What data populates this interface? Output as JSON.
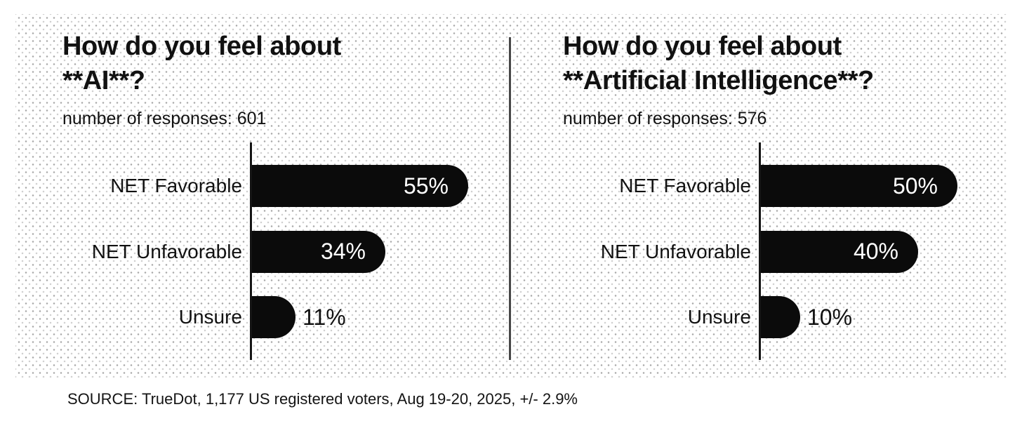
{
  "page": {
    "footer_source": "SOURCE: TrueDot, 1,177 US registered voters, Aug 19-20, 2025, +/- 2.9%",
    "colors": {
      "background": "#ffffff",
      "bar": "#0b0b0b",
      "text": "#111111",
      "bar_label_inside": "#ffffff",
      "divider": "#484848",
      "dot_texture": "#a9a9a9"
    }
  },
  "chart_data": [
    {
      "type": "bar",
      "orientation": "horizontal",
      "title": "How do you feel about **AI**?",
      "title_lines": [
        "How do you feel about",
        "**AI**?"
      ],
      "subtitle": "number of responses: 601",
      "responses": 601,
      "categories": [
        "NET Favorable",
        "NET Unfavorable",
        "Unsure"
      ],
      "values": [
        55,
        34,
        11
      ],
      "value_labels": [
        "55%",
        "34%",
        "11%"
      ],
      "xlim": [
        0,
        60
      ],
      "grid": false,
      "legend": "none"
    },
    {
      "type": "bar",
      "orientation": "horizontal",
      "title": "How do you feel about **Artificial Intelligence**?",
      "title_lines": [
        "How do you feel about",
        "**Artificial Intelligence**?"
      ],
      "subtitle": "number of responses: 576",
      "responses": 576,
      "categories": [
        "NET Favorable",
        "NET Unfavorable",
        "Unsure"
      ],
      "values": [
        50,
        40,
        10
      ],
      "value_labels": [
        "50%",
        "40%",
        "10%"
      ],
      "xlim": [
        0,
        60
      ],
      "grid": false,
      "legend": "none"
    }
  ]
}
